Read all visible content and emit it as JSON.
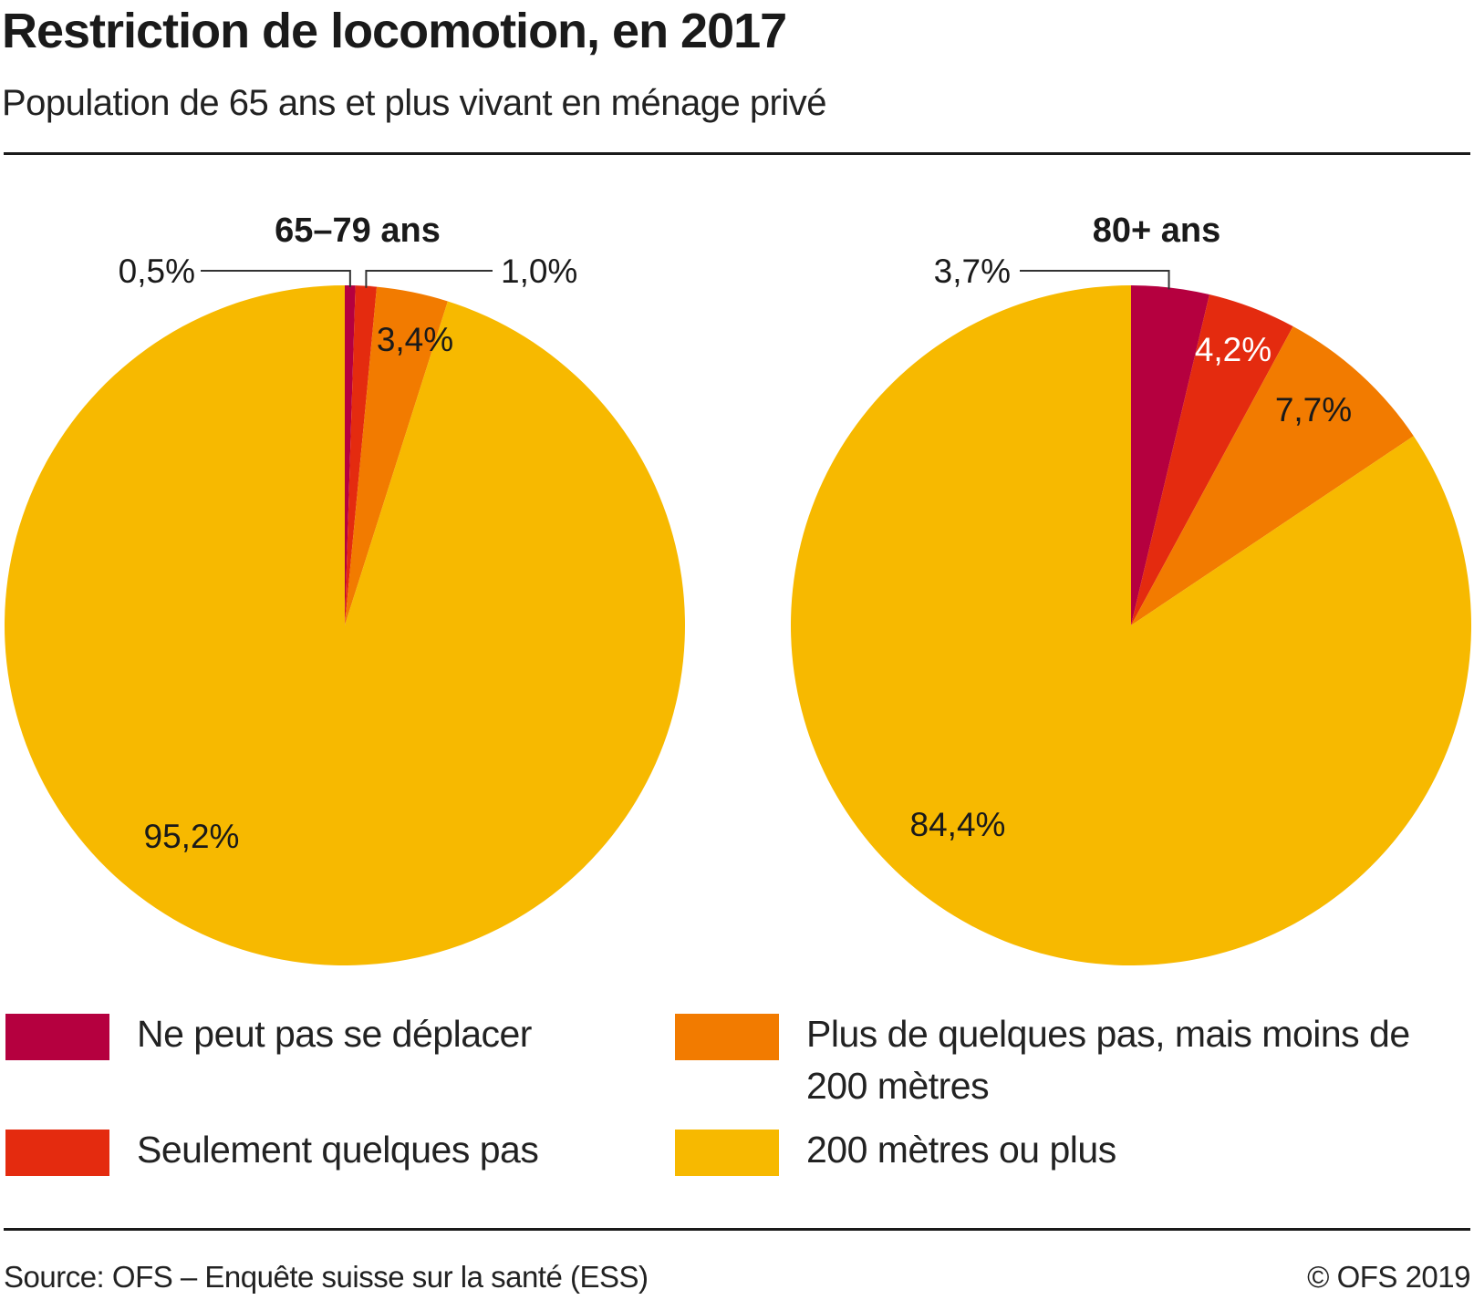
{
  "header": {
    "title": "Restriction de locomotion, en 2017",
    "subtitle": "Population de 65 ans et plus vivant en ménage privé"
  },
  "chart_data": [
    {
      "type": "pie",
      "title": "65–79 ans",
      "categories": [
        "Ne peut pas se déplacer",
        "Seulement quelques pas",
        "Plus de quelques pas, mais moins de 200 mètres",
        "200 mètres ou plus"
      ],
      "values": [
        0.5,
        1.0,
        3.4,
        95.2
      ],
      "labels": [
        "0,5%",
        "1,0%",
        "3,4%",
        "95,2%"
      ],
      "start": "12 o'clock, clockwise"
    },
    {
      "type": "pie",
      "title": "80+ ans",
      "categories": [
        "Ne peut pas se déplacer",
        "Seulement quelques pas",
        "Plus de quelques pas, mais moins de 200 mètres",
        "200 mètres ou plus"
      ],
      "values": [
        3.7,
        4.2,
        7.7,
        84.4
      ],
      "labels": [
        "3,7%",
        "4,2%",
        "7,7%",
        "84,4%"
      ],
      "start": "12 o'clock, clockwise"
    }
  ],
  "legend": {
    "items": [
      {
        "label": "Ne peut pas se déplacer",
        "color": "#b5003f"
      },
      {
        "label": "Seulement quelques pas",
        "color": "#e42b0f"
      },
      {
        "label": "Plus de quelques pas, mais moins de 200 mètres",
        "color": "#f27b00"
      },
      {
        "label": "200 mètres ou plus",
        "color": "#f7b900"
      }
    ]
  },
  "footer": {
    "source": "Source: OFS – Enquête suisse sur la santé (ESS)",
    "copyright": "© OFS 2019"
  }
}
